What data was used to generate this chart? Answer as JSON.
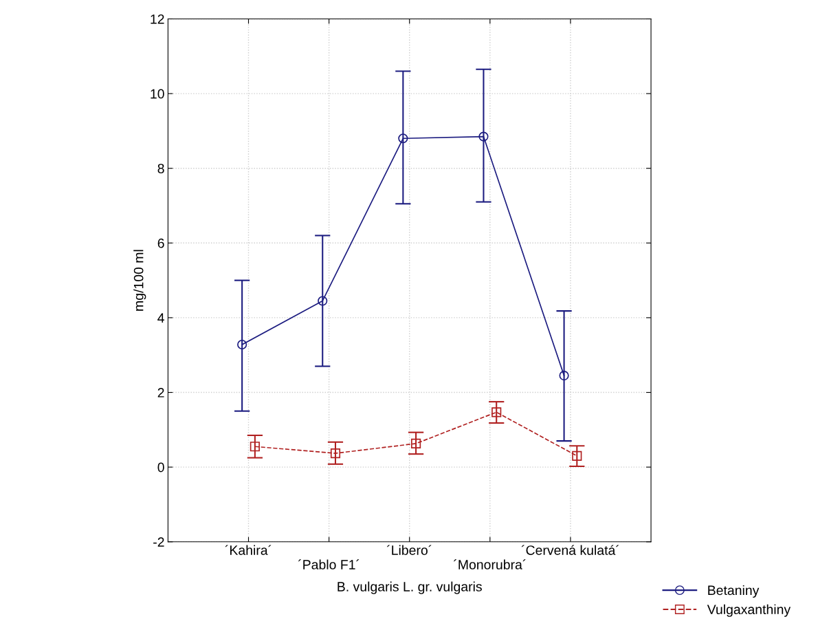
{
  "chart_data": {
    "type": "line",
    "xlabel": "B. vulgaris L. gr. vulgaris",
    "ylabel": "mg/100 ml",
    "categories": [
      "´Kahira´",
      "´Pablo F1´",
      "´Libero´",
      "´Monorubra´",
      "´Cervená kulatá´"
    ],
    "series": [
      {
        "name": "Betaniny",
        "color": "#1c1c80",
        "marker": "circle",
        "line_style": "solid",
        "values": [
          3.28,
          4.45,
          8.8,
          8.85,
          2.45
        ],
        "errors": [
          [
            1.5,
            5.0
          ],
          [
            2.7,
            6.2
          ],
          [
            7.05,
            10.6
          ],
          [
            7.1,
            10.65
          ],
          [
            0.7,
            4.18
          ]
        ]
      },
      {
        "name": "Vulgaxanthiny",
        "color": "#b02020",
        "marker": "square",
        "line_style": "dashed",
        "values": [
          0.55,
          0.37,
          0.63,
          1.47,
          0.3
        ],
        "errors": [
          [
            0.25,
            0.85
          ],
          [
            0.08,
            0.67
          ],
          [
            0.35,
            0.93
          ],
          [
            1.18,
            1.75
          ],
          [
            0.02,
            0.57
          ]
        ]
      }
    ],
    "ylim": [
      -2,
      12
    ],
    "yticks": [
      -2,
      0,
      2,
      4,
      6,
      8,
      10,
      12
    ],
    "grid": true,
    "legend": "bottom right"
  }
}
